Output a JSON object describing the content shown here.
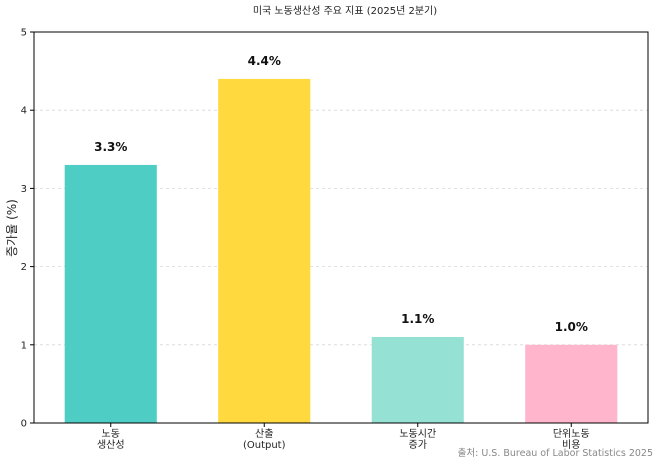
{
  "chart_data": {
    "type": "bar",
    "title": "미국 노동생산성 주요 지표 (2025년 2분기)",
    "ylabel": "증가율 (%)",
    "xlabel": "",
    "categories": [
      [
        "노동",
        "생산성"
      ],
      [
        "산출",
        "(Output)"
      ],
      [
        "노동시간",
        "증가"
      ],
      [
        "단위노동",
        "비용"
      ]
    ],
    "values": [
      3.3,
      4.4,
      1.1,
      1.0
    ],
    "value_labels": [
      "3.3%",
      "4.4%",
      "1.1%",
      "1.0%"
    ],
    "colors": [
      "#4ecdc4",
      "#ffd93d",
      "#95e1d3",
      "#ffb6cd"
    ],
    "ylim": [
      0,
      5
    ],
    "yticks": [
      0,
      1,
      2,
      3,
      4,
      5
    ],
    "grid": true,
    "legend": "none",
    "source": "출처: U.S. Bureau of Labor Statistics 2025"
  }
}
